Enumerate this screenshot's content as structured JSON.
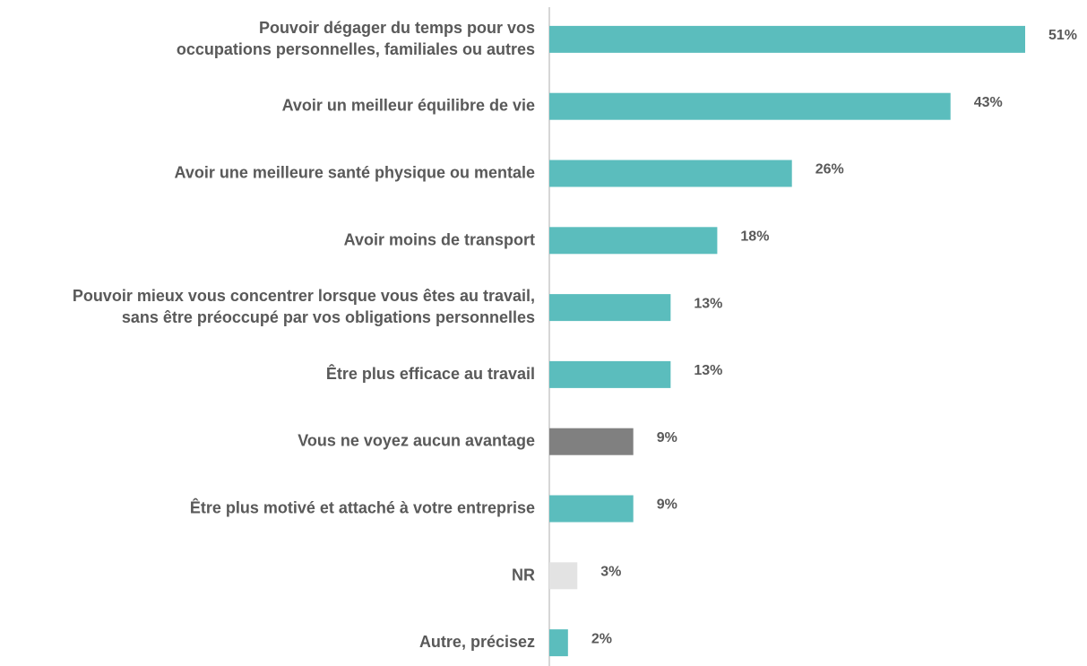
{
  "chart_data": {
    "type": "bar",
    "orientation": "horizontal",
    "categories": [
      [
        "Pouvoir dégager du temps pour vos",
        "occupations personnelles, familiales ou autres"
      ],
      [
        "Avoir un meilleur équilibre de vie"
      ],
      [
        "Avoir une meilleure santé physique ou mentale"
      ],
      [
        "Avoir moins de transport"
      ],
      [
        "Pouvoir mieux vous concentrer lorsque vous êtes au travail,",
        "sans être préoccupé par vos obligations personnelles"
      ],
      [
        "Être plus efficace au travail"
      ],
      [
        "Vous ne voyez aucun avantage"
      ],
      [
        "Être plus motivé et attaché à votre entreprise"
      ],
      [
        "NR"
      ],
      [
        "Autre, précisez"
      ]
    ],
    "values": [
      51,
      43,
      26,
      18,
      13,
      13,
      9,
      9,
      3,
      2
    ],
    "value_labels": [
      "51%",
      "43%",
      "26%",
      "18%",
      "13%",
      "13%",
      "9%",
      "9%",
      "3%",
      "2%"
    ],
    "colors": [
      "#5bbdbd",
      "#5bbdbd",
      "#5bbdbd",
      "#5bbdbd",
      "#5bbdbd",
      "#5bbdbd",
      "#808080",
      "#5bbdbd",
      "#e3e3e3",
      "#5bbdbd"
    ],
    "xlim": [
      0,
      51
    ]
  }
}
